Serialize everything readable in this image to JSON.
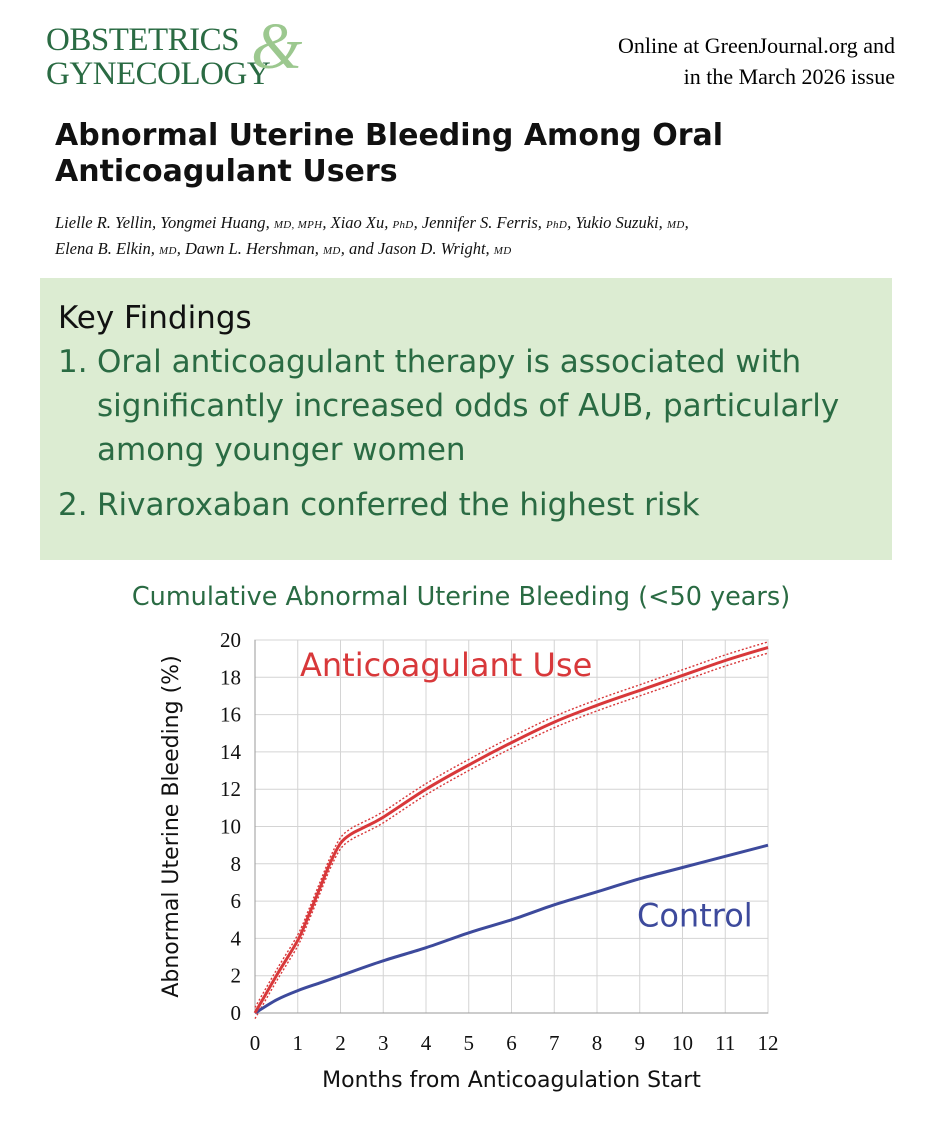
{
  "journal": {
    "line1": "OBSTETRICS",
    "ampersand": "&",
    "line2": "GYNECOLOGY",
    "online_line1": "Online at GreenJournal.org and",
    "online_line2": "in the March 2026 issue"
  },
  "article": {
    "title_line1": "Abnormal Uterine Bleeding Among Oral",
    "title_line2": "Anticoagulant Users",
    "authors": [
      {
        "name": "Lielle R. Yellin",
        "degree": "",
        "sep": ", "
      },
      {
        "name": "Yongmei Huang",
        "degree": "MD, MPH",
        "sep": ", "
      },
      {
        "name": "Xiao Xu",
        "degree": "PhD",
        "sep": ", "
      },
      {
        "name": "Jennifer S. Ferris",
        "degree": "PhD",
        "sep": ", "
      },
      {
        "name": "Yukio Suzuki",
        "degree": "MD",
        "sep": ","
      },
      {
        "name": "Elena B. Elkin",
        "degree": "MD",
        "sep": ", "
      },
      {
        "name": "Dawn L. Hershman",
        "degree": "MD",
        "sep": ", "
      },
      {
        "name": "and Jason D. Wright",
        "degree": "MD",
        "sep": ""
      }
    ]
  },
  "key_findings": {
    "heading": "Key Findings",
    "items": [
      {
        "num": "1.",
        "text": "Oral anticoagulant therapy is associated with significantly increased odds of AUB, particularly among younger women"
      },
      {
        "num": "2.",
        "text": "Rivaroxaban conferred the highest risk"
      }
    ]
  },
  "colors": {
    "brand_green": "#2a6b43",
    "panel_green": "#dcecd2",
    "anticoagulant": "#d8383a",
    "control": "#3d4a9c",
    "grid": "#d4d4d4"
  },
  "chart_data": {
    "type": "line",
    "title": "Cumulative Abnormal Uterine Bleeding (<50 years)",
    "xlabel": "Months from Anticoagulation Start",
    "ylabel": "Abnormal Uterine Bleeding (%)",
    "xlim": [
      0,
      12
    ],
    "ylim": [
      0,
      20
    ],
    "xticks": [
      0,
      1,
      2,
      3,
      4,
      5,
      6,
      7,
      8,
      9,
      10,
      11,
      12
    ],
    "yticks": [
      0,
      2,
      4,
      6,
      8,
      10,
      12,
      14,
      16,
      18,
      20
    ],
    "grid": true,
    "series": [
      {
        "name": "Anticoagulant Use",
        "color": "#d8383a",
        "x": [
          0,
          0.5,
          1,
          1.25,
          1.5,
          1.75,
          2,
          2.25,
          2.5,
          3,
          4,
          5,
          6,
          7,
          8,
          9,
          10,
          11,
          12
        ],
        "y": [
          0,
          2,
          3.9,
          5.2,
          6.6,
          8,
          9.1,
          9.6,
          9.9,
          10.5,
          12,
          13.3,
          14.5,
          15.6,
          16.5,
          17.3,
          18.1,
          18.9,
          19.6
        ],
        "ci_halfwidth": 0.3
      },
      {
        "name": "Control",
        "color": "#3d4a9c",
        "x": [
          0,
          0.5,
          1,
          1.5,
          2,
          3,
          4,
          5,
          6,
          7,
          8,
          9,
          10,
          11,
          12
        ],
        "y": [
          0,
          0.7,
          1.2,
          1.6,
          2,
          2.8,
          3.5,
          4.3,
          5,
          5.8,
          6.5,
          7.2,
          7.8,
          8.4,
          9
        ]
      }
    ]
  }
}
